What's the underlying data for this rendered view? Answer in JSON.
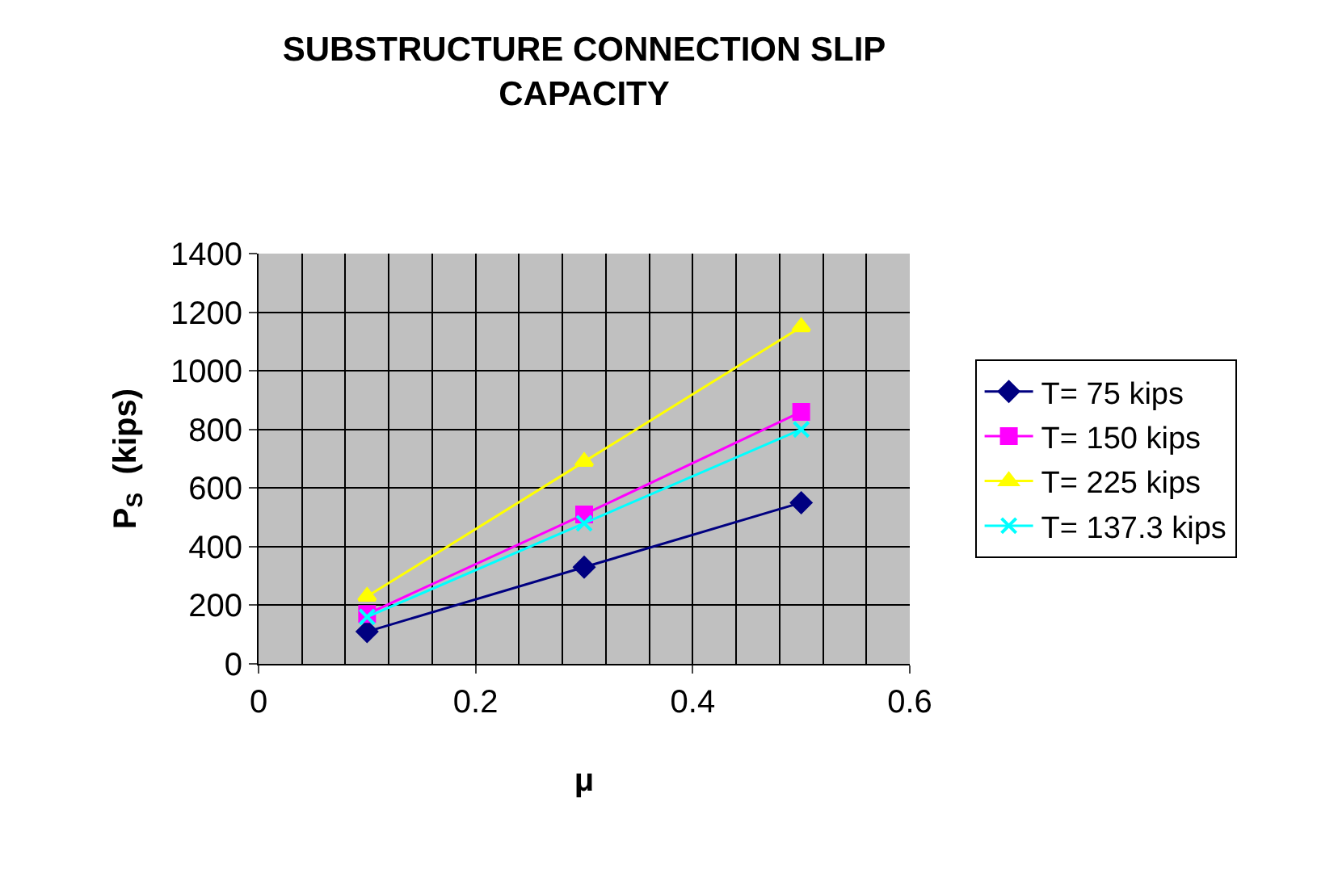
{
  "chart_data": {
    "type": "line",
    "title": "SUBSTRUCTURE CONNECTION SLIP CAPACITY",
    "xlabel": "μ",
    "ylabel": "P$_{S}$  (kips)",
    "x": [
      0.1,
      0.3,
      0.5
    ],
    "series": [
      {
        "name": "T= 75 kips",
        "color": "#000080",
        "marker": "diamond",
        "values": [
          110,
          330,
          550
        ]
      },
      {
        "name": "T= 150 kips",
        "color": "#ff00ff",
        "marker": "square",
        "values": [
          170,
          510,
          860
        ]
      },
      {
        "name": "T= 225 kips",
        "color": "#ffff00",
        "marker": "triangle",
        "values": [
          230,
          690,
          1150
        ]
      },
      {
        "name": "T= 137.3 kips",
        "color": "#00ffff",
        "marker": "cross",
        "values": [
          160,
          480,
          800
        ]
      }
    ],
    "xlim": [
      0,
      0.6
    ],
    "xticks": [
      0,
      0.2,
      0.4,
      0.6
    ],
    "ylim": [
      0,
      1400
    ],
    "yticks": [
      0,
      200,
      400,
      600,
      800,
      1000,
      1200,
      1400
    ],
    "grid": true,
    "legend": "right"
  }
}
